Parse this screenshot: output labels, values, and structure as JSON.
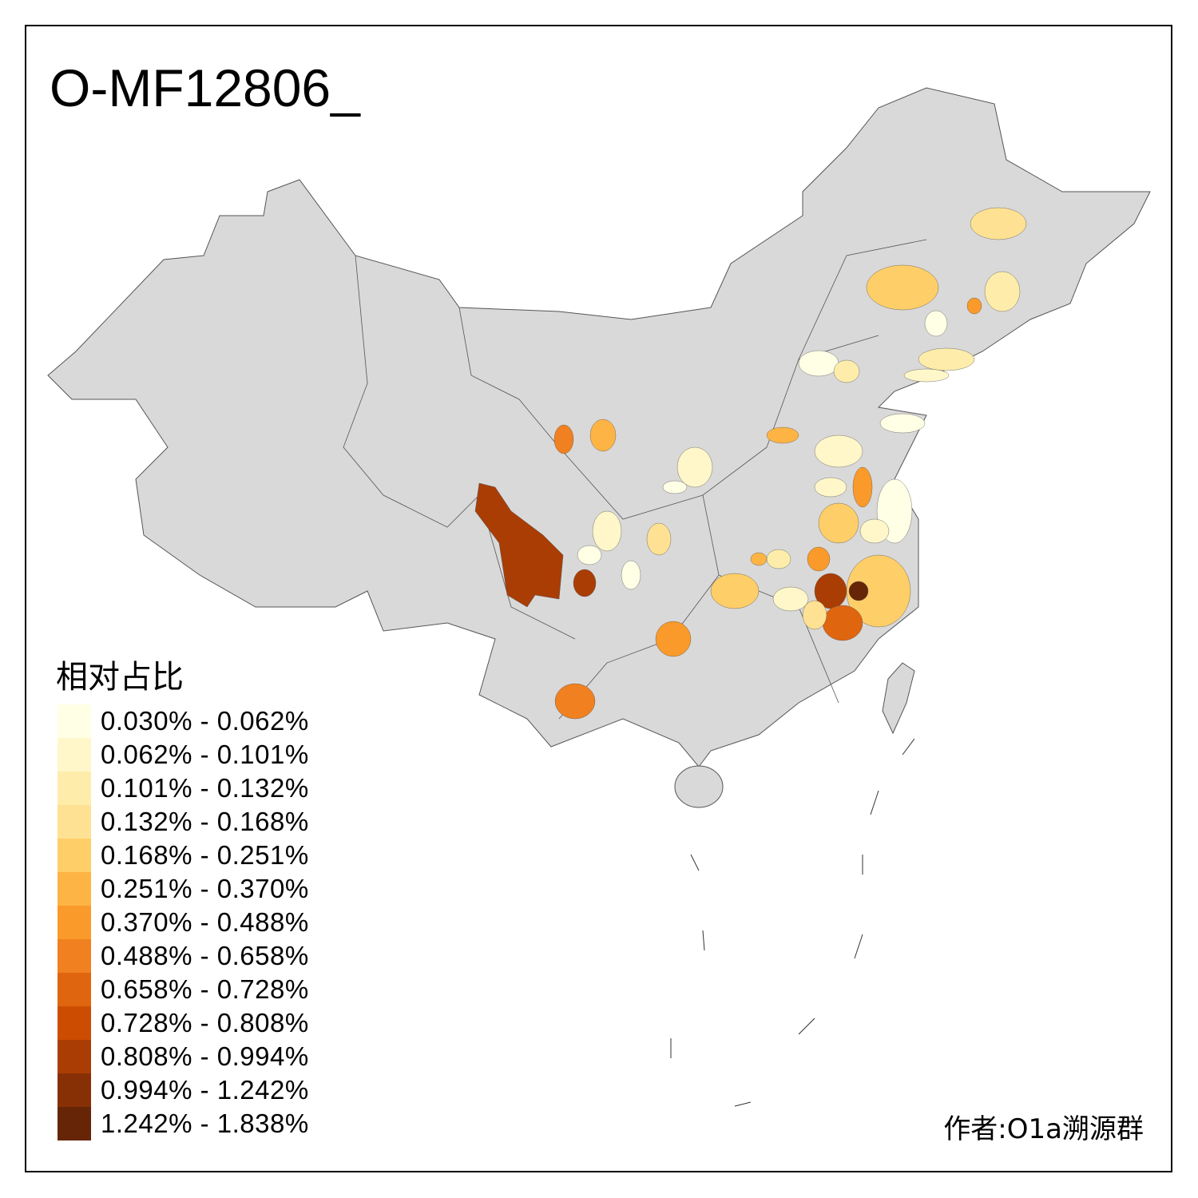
{
  "title": "O-MF12806_",
  "legend": {
    "title": "相对占比",
    "items": [
      {
        "label": "0.030% - 0.062%",
        "color": "#FFFFE6"
      },
      {
        "label": "0.062% - 0.101%",
        "color": "#FFF7C9"
      },
      {
        "label": "0.101% - 0.132%",
        "color": "#FEEDAA"
      },
      {
        "label": "0.132% - 0.168%",
        "color": "#FEE193"
      },
      {
        "label": "0.168% - 0.251%",
        "color": "#FECE68"
      },
      {
        "label": "0.251% - 0.370%",
        "color": "#FDB444"
      },
      {
        "label": "0.370% - 0.488%",
        "color": "#FA9A2A"
      },
      {
        "label": "0.488% - 0.658%",
        "color": "#F08020"
      },
      {
        "label": "0.658% - 0.728%",
        "color": "#E0650F"
      },
      {
        "label": "0.728% - 0.808%",
        "color": "#CC4C02"
      },
      {
        "label": "0.808% - 0.994%",
        "color": "#AA3D04"
      },
      {
        "label": "0.994% - 1.242%",
        "color": "#873006"
      },
      {
        "label": "1.242% - 1.838%",
        "color": "#662506"
      }
    ]
  },
  "map": {
    "base_color": "#D9D9D9",
    "border_color": "#555555"
  },
  "author": "作者:O1a溯源群"
}
